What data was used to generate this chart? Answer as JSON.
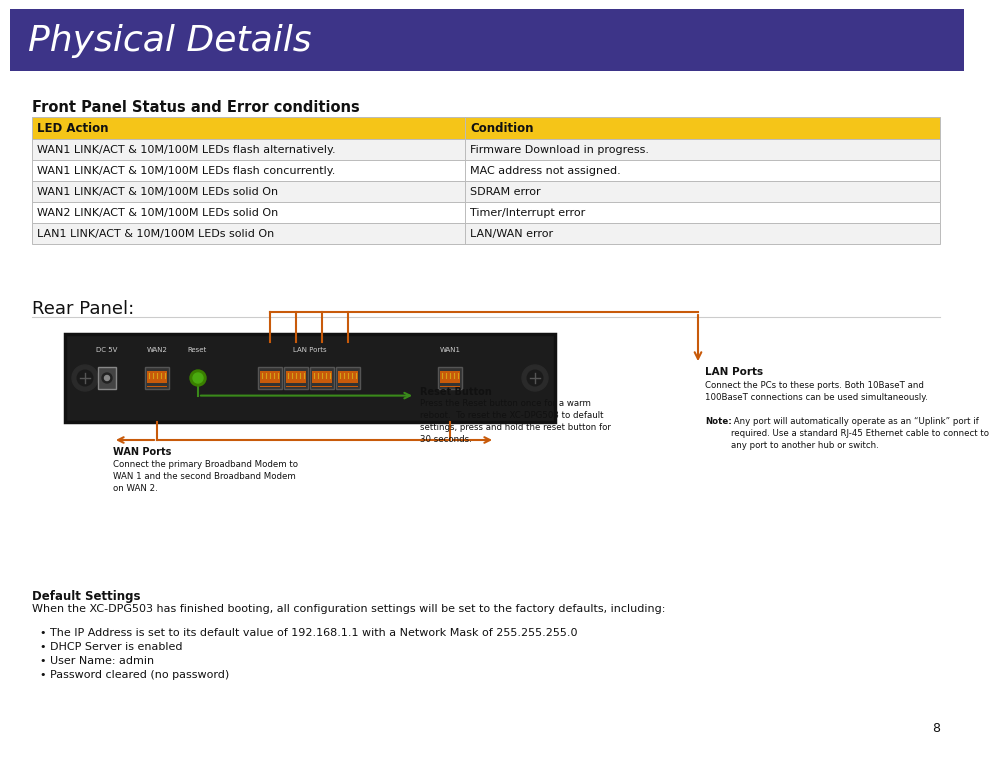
{
  "title": "Physical Details",
  "title_bg_color": "#3d3488",
  "title_text_color": "#ffffff",
  "title_font_size": 26,
  "page_bg_color": "#ffffff",
  "section1_title": "Front Panel Status and Error conditions",
  "table_header": [
    "LED Action",
    "Condition"
  ],
  "table_header_bg": "#f5c518",
  "table_rows": [
    [
      "WAN1 LINK/ACT & 10M/100M LEDs flash alternatively.",
      "Firmware Download in progress."
    ],
    [
      "WAN1 LINK/ACT & 10M/100M LEDs flash concurrently.",
      "MAC address not assigned."
    ],
    [
      "WAN1 LINK/ACT & 10M/100M LEDs solid On",
      "SDRAM error"
    ],
    [
      "WAN2 LINK/ACT & 10M/100M LEDs solid On",
      "Timer/Interrupt error"
    ],
    [
      "LAN1 LINK/ACT & 10M/100M LEDs solid On",
      "LAN/WAN error"
    ]
  ],
  "table_row_bg_odd": "#f2f2f2",
  "table_row_bg_even": "#ffffff",
  "table_border_color": "#bbbbbb",
  "section2_title": "Rear Panel:",
  "default_settings_title": "Default Settings",
  "default_settings_intro": "When the XC-DPG503 has finished booting, all configuration settings will be set to the factory defaults, including:",
  "default_settings_bullets": [
    "• The IP Address is set to its default value of 192.168.1.1 with a Network Mask of 255.255.255.0",
    "• DHCP Server is enabled",
    "• User Name: admin",
    "• Password cleared (no password)"
  ],
  "orange_color": "#c85a0a",
  "green_color": "#3a8a1a",
  "dark_color": "#111111",
  "page_number": "8",
  "router_labels": [
    "DC 5V",
    "WAN2",
    "Reset",
    "LAN Ports",
    "WAN1"
  ],
  "wan_ports_label": "WAN Ports",
  "wan_ports_text": "Connect the primary Broadband Modem to\nWAN 1 and the second Broadband Modem\non WAN 2.",
  "reset_button_label": "Reset Button",
  "reset_button_text": "Press the Reset button once for a warm\nreboot.  To reset the XC-DPG503 to default\nsettings, press and hold the reset button for\n30 seconds.",
  "lan_ports_label": "LAN Ports",
  "lan_ports_text": "Connect the PCs to these ports. Both 10BaseT and\n100BaseT connections can be used simultaneously.",
  "lan_ports_note_bold": "Note:",
  "lan_ports_note": " Any port will automatically operate as an “Uplink” port if\nrequired. Use a standard RJ-45 Ethernet cable to connect to\nany port to another hub or switch."
}
